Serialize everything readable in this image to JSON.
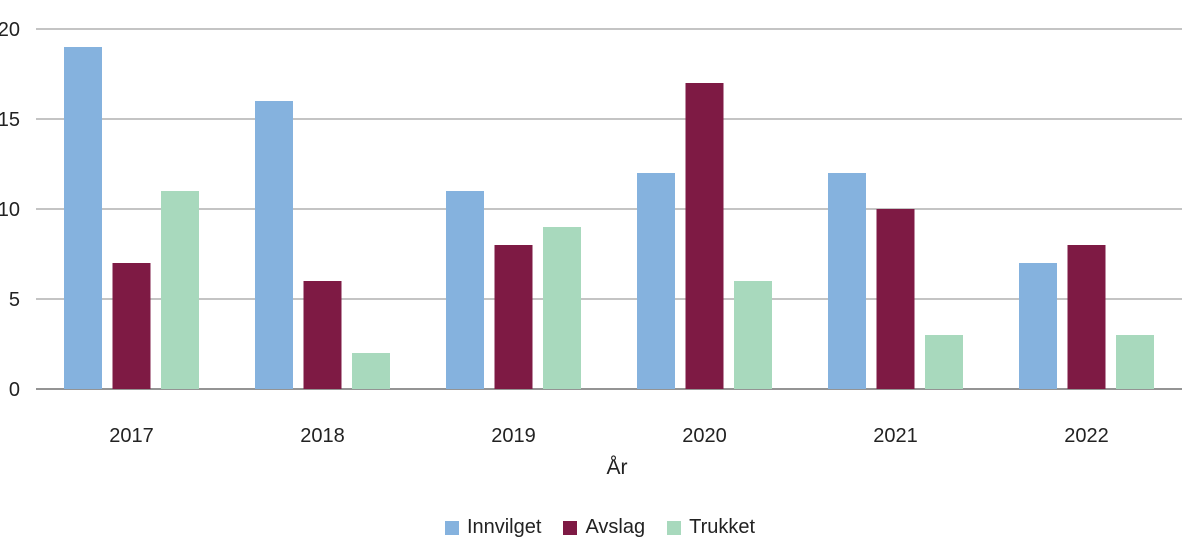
{
  "chart_data": {
    "type": "bar",
    "title": "",
    "xlabel": "År",
    "ylabel": "",
    "categories": [
      "2017",
      "2018",
      "2019",
      "2020",
      "2021",
      "2022"
    ],
    "ylim": [
      0,
      20
    ],
    "yticks": [
      0,
      5,
      10,
      15,
      20
    ],
    "grid": true,
    "legend_position": "bottom-center",
    "series": [
      {
        "name": "Innvilget",
        "color": "#85b2de",
        "values": [
          19,
          16,
          11,
          12,
          12,
          7
        ]
      },
      {
        "name": "Avslag",
        "color": "#7e1a44",
        "values": [
          7,
          6,
          8,
          17,
          10,
          8
        ]
      },
      {
        "name": "Trukket",
        "color": "#a8d9bd",
        "values": [
          11,
          2,
          9,
          6,
          3,
          3
        ]
      }
    ]
  }
}
